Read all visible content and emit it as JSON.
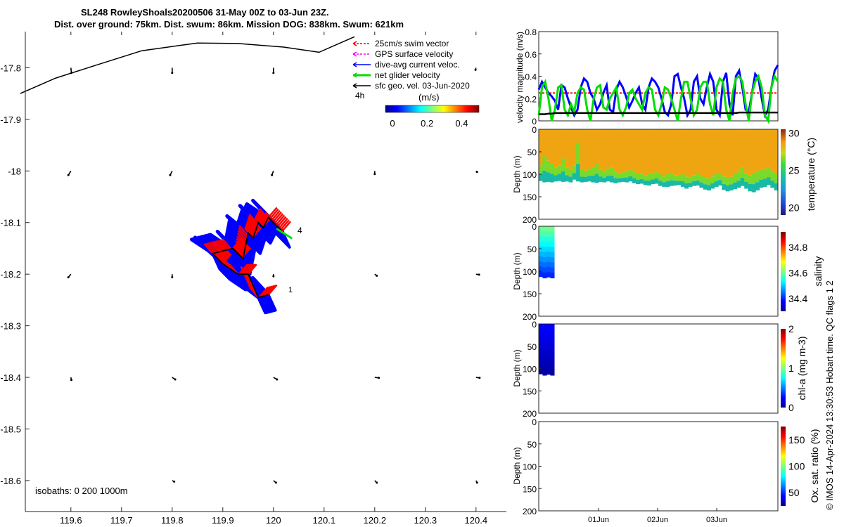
{
  "header": {
    "line1": "SL248 RowleyShoals20200506 31-May 00Z to 03-Jun 23Z.",
    "line2": "Dist. over ground: 75km. Dist. swum: 86km. Mission DOG: 838km. Swum: 621km"
  },
  "credit": "© IMOS 14-Apr-2024 13:30:53 Hobart time. QC flags 1  2",
  "colors": {
    "swim": "#ff0000",
    "gps": "#ff00ff",
    "dive_avg": "#0000ff",
    "net": "#00dd00",
    "sfc": "#000000"
  },
  "chart_data": [
    {
      "id": "map",
      "type": "scatter",
      "xticks": [
        "119.6",
        "119.7",
        "119.8",
        "119.9",
        "120",
        "120.1",
        "120.2",
        "120.3",
        "120.4"
      ],
      "yticks": [
        "-17.8",
        "-17.9",
        "-18",
        "-18.1",
        "-18.2",
        "-18.3",
        "-18.4",
        "-18.5",
        "-18.6"
      ],
      "xlim": [
        119.51,
        120.46
      ],
      "ylim": [
        -18.66,
        -17.73
      ],
      "legend": {
        "items": [
          "25cm/s swim vector",
          "GPS surface velocity",
          "dive-avg current veloc.",
          "net glider velocity",
          "sfc geo. vel. 03-Jun-2020"
        ],
        "duration": "4h",
        "colorbar_label": "(m/s)",
        "colorbar_ticks": [
          "0",
          "0.2",
          "0.4"
        ]
      },
      "labels": {
        "isobaths": "isobaths: 0   200  1000m",
        "start": "1",
        "end": "4"
      },
      "coast": [
        [
          119.5,
          -17.85
        ],
        [
          119.57,
          -17.82
        ],
        [
          119.65,
          -17.795
        ],
        [
          119.74,
          -17.767
        ],
        [
          119.85,
          -17.752
        ],
        [
          119.93,
          -17.753
        ],
        [
          120.02,
          -17.76
        ],
        [
          120.09,
          -17.77
        ],
        [
          120.16,
          -17.74
        ]
      ],
      "track": [
        [
          119.99,
          -18.24
        ],
        [
          119.97,
          -18.245
        ],
        [
          119.95,
          -18.2
        ],
        [
          119.93,
          -18.2
        ],
        [
          119.9,
          -18.18
        ],
        [
          119.88,
          -18.16
        ],
        [
          119.92,
          -18.15
        ],
        [
          119.94,
          -18.17
        ],
        [
          119.95,
          -18.12
        ],
        [
          119.96,
          -18.13
        ],
        [
          119.97,
          -18.1
        ],
        [
          119.98,
          -18.11
        ],
        [
          119.99,
          -18.09
        ],
        [
          120.02,
          -18.12
        ]
      ],
      "geo_vectors": [
        [
          119.6,
          -17.8,
          0.001,
          -0.01
        ],
        [
          119.8,
          -17.8,
          0.0,
          -0.01
        ],
        [
          120.0,
          -17.8,
          0.0,
          -0.01
        ],
        [
          120.4,
          -17.8,
          -0.001,
          -0.004
        ],
        [
          119.6,
          -18.0,
          -0.005,
          -0.008
        ],
        [
          119.8,
          -18.0,
          -0.004,
          -0.008
        ],
        [
          120.0,
          -18.0,
          -0.003,
          -0.008
        ],
        [
          120.2,
          -18.0,
          0.0,
          -0.006
        ],
        [
          120.4,
          -18.0,
          0.002,
          -0.002
        ],
        [
          119.6,
          -18.2,
          -0.005,
          -0.006
        ],
        [
          119.8,
          -18.2,
          0.0,
          -0.006
        ],
        [
          120.0,
          -18.2,
          0.0,
          -0.004
        ],
        [
          120.2,
          -18.2,
          0.004,
          -0.003
        ],
        [
          120.4,
          -18.2,
          0.006,
          -0.001
        ],
        [
          119.6,
          -18.4,
          0.001,
          -0.005
        ],
        [
          119.8,
          -18.4,
          0.006,
          -0.004
        ],
        [
          120.0,
          -18.4,
          0.007,
          -0.004
        ],
        [
          120.2,
          -18.4,
          0.008,
          -0.001
        ],
        [
          120.4,
          -18.4,
          0.007,
          -0.001
        ],
        [
          119.8,
          -18.6,
          0.004,
          -0.002
        ],
        [
          120.0,
          -18.6,
          0.005,
          -0.004
        ],
        [
          120.2,
          -18.6,
          0.004,
          -0.004
        ],
        [
          120.4,
          -18.6,
          0.002,
          -0.004
        ]
      ]
    },
    {
      "id": "velocity",
      "type": "line",
      "ylabel": "velocity magnitude (m/s)",
      "ylim": [
        0,
        0.8
      ],
      "yticks": [
        "0",
        "0.2",
        "0.4",
        "0.6",
        "0.8"
      ],
      "reference_value": 0.25,
      "series": [
        {
          "color": "#0000ff",
          "values": [
            0.28,
            0.35,
            0.3,
            0.25,
            0.22,
            0.18,
            0.1,
            0.32,
            0.3,
            0.2,
            0.12,
            0.05,
            0.1,
            0.3,
            0.38,
            0.35,
            0.25,
            0.2,
            0.1,
            0.15,
            0.25,
            0.32,
            0.1,
            0.08,
            0.28,
            0.35,
            0.3,
            0.22,
            0.12,
            0.18,
            0.25,
            0.3,
            0.15,
            0.1,
            0.3,
            0.38,
            0.35,
            0.3,
            0.2,
            0.08,
            0.05,
            0.15,
            0.4,
            0.42,
            0.3,
            0.2,
            0.05,
            0.1,
            0.35,
            0.4,
            0.2,
            0.15,
            0.3,
            0.42,
            0.35,
            0.1,
            0.05,
            0.35,
            0.43,
            0.15,
            0.05,
            0.4,
            0.45,
            0.3,
            0.1,
            0.08,
            0.25,
            0.42,
            0.38,
            0.2,
            0.05,
            0.1,
            0.3,
            0.45,
            0.5
          ]
        },
        {
          "color": "#00dd00",
          "values": [
            0.05,
            0.3,
            0.35,
            0.2,
            0.0,
            0.1,
            0.3,
            0.32,
            0.1,
            0.05,
            0.15,
            0.08,
            0.25,
            0.3,
            0.28,
            0.1,
            0.0,
            0.2,
            0.3,
            0.32,
            0.12,
            0.1,
            0.2,
            0.25,
            0.3,
            0.1,
            0.05,
            0.12,
            0.25,
            0.28,
            0.2,
            0.15,
            0.1,
            0.25,
            0.3,
            0.28,
            0.1,
            0.05,
            0.15,
            0.3,
            0.28,
            0.2,
            0.1,
            0.0,
            0.2,
            0.35,
            0.35,
            0.2,
            0.05,
            0.1,
            0.3,
            0.35,
            0.35,
            0.15,
            0.05,
            0.3,
            0.38,
            0.35,
            0.1,
            0.0,
            0.25,
            0.38,
            0.4,
            0.35,
            0.15,
            0.0,
            0.25,
            0.35,
            0.4,
            0.3,
            0.05,
            0.0,
            0.3,
            0.4,
            0.35
          ]
        },
        {
          "color": "#000000",
          "values": [
            0.06,
            0.06,
            0.06,
            0.065,
            0.065,
            0.07,
            0.07,
            0.07,
            0.07,
            0.07,
            0.07,
            0.07,
            0.07,
            0.07,
            0.07,
            0.07,
            0.07,
            0.07,
            0.07,
            0.07,
            0.07,
            0.07,
            0.07,
            0.07,
            0.07,
            0.07,
            0.07,
            0.07,
            0.07,
            0.07,
            0.07,
            0.07,
            0.07,
            0.07,
            0.07,
            0.07,
            0.07,
            0.07,
            0.07,
            0.07,
            0.07,
            0.07,
            0.07,
            0.07,
            0.07,
            0.07,
            0.07,
            0.07,
            0.07,
            0.07,
            0.07,
            0.07,
            0.07,
            0.07,
            0.07,
            0.07,
            0.07,
            0.07,
            0.07,
            0.07,
            0.07,
            0.07,
            0.075,
            0.075,
            0.075,
            0.075,
            0.075,
            0.075,
            0.075,
            0.075,
            0.075,
            0.075,
            0.075,
            0.075,
            0.075
          ]
        }
      ]
    },
    {
      "id": "temperature",
      "type": "heatmap",
      "ylabel": "Depth (m)",
      "ylim": [
        0,
        200
      ],
      "yticks": [
        "0",
        "50",
        "100",
        "150",
        "200"
      ],
      "colorbar_label": "temperature (°C)",
      "colorbar_ticks": [
        "20",
        "25",
        "30"
      ],
      "clim": [
        19,
        30.5
      ],
      "mixed_layer_temp": 28.5,
      "profile_bottom_depth": [
        115,
        118,
        117,
        118,
        116,
        115,
        117,
        116,
        118,
        112,
        116,
        118,
        117,
        116,
        118,
        119,
        117,
        118,
        116,
        118,
        120,
        118,
        117,
        118,
        116,
        120,
        122,
        121,
        124,
        125,
        122,
        121,
        126,
        128,
        128,
        126,
        125,
        124,
        128,
        132,
        128,
        126,
        125,
        130,
        134,
        136,
        132,
        128,
        125,
        135,
        138,
        136,
        133,
        130,
        126,
        132,
        138,
        140,
        136,
        130,
        128,
        124,
        130,
        136
      ],
      "thermocline_depth": [
        80,
        60,
        70,
        75,
        85,
        80,
        65,
        85,
        90,
        80,
        30,
        90,
        92,
        88,
        85,
        75,
        90,
        95,
        88,
        85,
        95,
        98,
        96,
        94,
        90,
        95,
        100,
        98,
        102,
        100,
        98,
        95,
        100,
        105,
        100,
        98,
        102,
        104,
        100,
        105,
        108,
        102,
        100,
        104,
        108,
        110,
        105,
        100,
        98,
        105,
        108,
        106,
        100,
        95,
        85,
        98,
        102,
        100,
        95,
        90,
        88,
        85,
        95,
        100
      ]
    },
    {
      "id": "salinity",
      "type": "heatmap",
      "ylabel": "Depth (m)",
      "ylim": [
        0,
        200
      ],
      "yticks": [
        "0",
        "50",
        "100",
        "150",
        "200"
      ],
      "colorbar_label": "salinity",
      "colorbar_ticks": [
        "34.4",
        "34.6",
        "34.8"
      ],
      "clim": [
        34.3,
        34.92
      ],
      "profile_bottom_depth": [
        112,
        115,
        113,
        115
      ],
      "surface_value": 34.6,
      "bottom_value": 34.4
    },
    {
      "id": "chla",
      "type": "heatmap",
      "ylabel": "Depth (m)",
      "ylim": [
        0,
        200
      ],
      "yticks": [
        "0",
        "50",
        "100",
        "150",
        "200"
      ],
      "colorbar_label": "chl-a (mg m-3)",
      "colorbar_ticks": [
        "0",
        "1",
        "2"
      ],
      "clim": [
        0,
        2
      ],
      "profile_bottom_depth": [
        112,
        115,
        113,
        115
      ],
      "surface_value": 0.25,
      "bottom_value": 0.05
    },
    {
      "id": "oxygen",
      "type": "heatmap",
      "ylabel": "Depth (m)",
      "ylim": [
        0,
        200
      ],
      "yticks": [
        "0",
        "50",
        "100",
        "150",
        "200"
      ],
      "xticks": [
        "01Jun",
        "02Jun",
        "03Jun"
      ],
      "colorbar_label": "Ox. sat. ratio (%)",
      "colorbar_ticks": [
        "50",
        "100",
        "150"
      ],
      "clim": [
        25,
        175
      ]
    }
  ]
}
